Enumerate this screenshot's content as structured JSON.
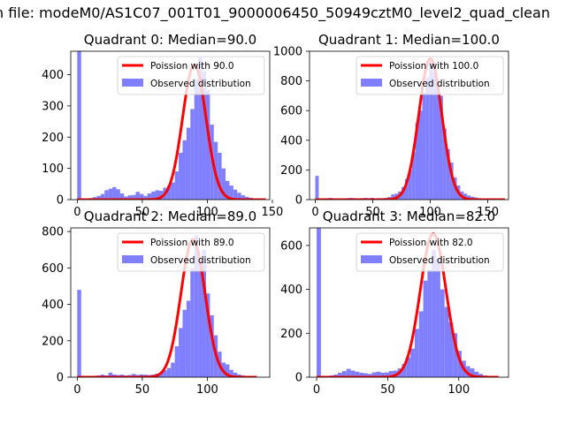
{
  "suptitle": "n file: modeM0/AS1C07_001T01_9000006450_50949cztM0_level2_quad_clean",
  "colors": {
    "hist": "#7f7fff",
    "fit": "#ff0000",
    "spine": "#000000"
  },
  "legend_labels": [
    "Poission with",
    "Observed distribution"
  ],
  "chart_data": [
    {
      "type": "bar",
      "title": "Quadrant 0: Median=90.0",
      "fit_label": "Poission with 90.0",
      "hist_label": "Observed distribution",
      "median": 90.0,
      "xlim": [
        -5,
        148
      ],
      "ylim": [
        0,
        475
      ],
      "xticks": [
        0,
        50,
        100,
        150
      ],
      "yticks": [
        0,
        100,
        200,
        300,
        400
      ],
      "bin_width": 3,
      "bins": [
        [
          0,
          475
        ],
        [
          3,
          4
        ],
        [
          6,
          4
        ],
        [
          9,
          5
        ],
        [
          12,
          8
        ],
        [
          15,
          12
        ],
        [
          18,
          18
        ],
        [
          21,
          30
        ],
        [
          24,
          35
        ],
        [
          27,
          40
        ],
        [
          30,
          33
        ],
        [
          33,
          20
        ],
        [
          36,
          10
        ],
        [
          39,
          14
        ],
        [
          42,
          15
        ],
        [
          45,
          25
        ],
        [
          48,
          18
        ],
        [
          51,
          12
        ],
        [
          54,
          20
        ],
        [
          57,
          26
        ],
        [
          60,
          30
        ],
        [
          63,
          28
        ],
        [
          66,
          38
        ],
        [
          69,
          45
        ],
        [
          72,
          55
        ],
        [
          75,
          90
        ],
        [
          78,
          150
        ],
        [
          81,
          190
        ],
        [
          84,
          230
        ],
        [
          87,
          290
        ],
        [
          90,
          385
        ],
        [
          93,
          455
        ],
        [
          96,
          410
        ],
        [
          99,
          350
        ],
        [
          102,
          240
        ],
        [
          105,
          185
        ],
        [
          108,
          150
        ],
        [
          111,
          100
        ],
        [
          114,
          60
        ],
        [
          117,
          45
        ],
        [
          120,
          32
        ],
        [
          123,
          22
        ],
        [
          126,
          14
        ],
        [
          129,
          9
        ],
        [
          132,
          6
        ],
        [
          135,
          4
        ],
        [
          138,
          3
        ]
      ],
      "fit": {
        "x0": 0,
        "x1": 145,
        "peak": 432,
        "sigma": 9.0
      }
    },
    {
      "type": "bar",
      "title": "Quadrant 1: Median=100.0",
      "fit_label": "Poission with 100.0",
      "hist_label": "Observed distribution",
      "median": 100.0,
      "xlim": [
        -5,
        168
      ],
      "ylim": [
        0,
        1000
      ],
      "xticks": [
        0,
        50,
        100,
        150
      ],
      "yticks": [
        0,
        200,
        400,
        600,
        800,
        1000
      ],
      "bin_width": 3,
      "bins": [
        [
          0,
          160
        ],
        [
          3,
          8
        ],
        [
          6,
          8
        ],
        [
          9,
          10
        ],
        [
          12,
          12
        ],
        [
          15,
          8
        ],
        [
          18,
          6
        ],
        [
          21,
          7
        ],
        [
          24,
          6
        ],
        [
          27,
          10
        ],
        [
          30,
          12
        ],
        [
          33,
          10
        ],
        [
          36,
          8
        ],
        [
          39,
          10
        ],
        [
          42,
          12
        ],
        [
          45,
          10
        ],
        [
          48,
          12
        ],
        [
          51,
          8
        ],
        [
          54,
          10
        ],
        [
          57,
          10
        ],
        [
          60,
          12
        ],
        [
          63,
          18
        ],
        [
          66,
          35
        ],
        [
          69,
          40
        ],
        [
          72,
          55
        ],
        [
          75,
          85
        ],
        [
          78,
          140
        ],
        [
          81,
          200
        ],
        [
          84,
          320
        ],
        [
          87,
          520
        ],
        [
          90,
          600
        ],
        [
          93,
          720
        ],
        [
          96,
          820
        ],
        [
          99,
          950
        ],
        [
          102,
          860
        ],
        [
          105,
          800
        ],
        [
          108,
          700
        ],
        [
          111,
          480
        ],
        [
          114,
          340
        ],
        [
          117,
          250
        ],
        [
          120,
          150
        ],
        [
          123,
          95
        ],
        [
          126,
          55
        ],
        [
          129,
          40
        ],
        [
          132,
          28
        ],
        [
          135,
          20
        ],
        [
          138,
          15
        ],
        [
          141,
          10
        ],
        [
          144,
          8
        ],
        [
          147,
          6
        ]
      ],
      "fit": {
        "x0": 0,
        "x1": 165,
        "peak": 950,
        "sigma": 10.0
      }
    },
    {
      "type": "bar",
      "title": "Quadrant 2: Median=89.0",
      "fit_label": "Poission with 89.0",
      "hist_label": "Observed distribution",
      "median": 89.0,
      "xlim": [
        -5,
        148
      ],
      "ylim": [
        0,
        820
      ],
      "xticks": [
        0,
        50,
        100
      ],
      "yticks": [
        0,
        200,
        400,
        600,
        800
      ],
      "bin_width": 3,
      "bins": [
        [
          0,
          480
        ],
        [
          3,
          6
        ],
        [
          6,
          6
        ],
        [
          9,
          7
        ],
        [
          12,
          8
        ],
        [
          15,
          10
        ],
        [
          18,
          14
        ],
        [
          21,
          10
        ],
        [
          24,
          25
        ],
        [
          27,
          15
        ],
        [
          30,
          12
        ],
        [
          33,
          14
        ],
        [
          36,
          10
        ],
        [
          39,
          12
        ],
        [
          42,
          18
        ],
        [
          45,
          12
        ],
        [
          48,
          15
        ],
        [
          51,
          14
        ],
        [
          54,
          12
        ],
        [
          57,
          15
        ],
        [
          60,
          20
        ],
        [
          63,
          25
        ],
        [
          66,
          38
        ],
        [
          69,
          50
        ],
        [
          72,
          80
        ],
        [
          75,
          170
        ],
        [
          78,
          270
        ],
        [
          81,
          370
        ],
        [
          84,
          420
        ],
        [
          87,
          600
        ],
        [
          90,
          780
        ],
        [
          93,
          640
        ],
        [
          96,
          700
        ],
        [
          99,
          460
        ],
        [
          102,
          340
        ],
        [
          105,
          230
        ],
        [
          108,
          140
        ],
        [
          111,
          80
        ],
        [
          114,
          70
        ],
        [
          117,
          40
        ],
        [
          120,
          25
        ],
        [
          123,
          15
        ],
        [
          126,
          10
        ],
        [
          129,
          6
        ]
      ],
      "fit": {
        "x0": 0,
        "x1": 138,
        "peak": 757,
        "sigma": 9.3
      }
    },
    {
      "type": "bar",
      "title": "Quadrant 3: Median=82.0",
      "fit_label": "Poission with 82.0",
      "hist_label": "Observed distribution",
      "median": 82.0,
      "xlim": [
        -5,
        135
      ],
      "ylim": [
        0,
        680
      ],
      "xticks": [
        0,
        50,
        100
      ],
      "yticks": [
        0,
        200,
        400,
        600
      ],
      "bin_width": 3,
      "bins": [
        [
          0,
          680
        ],
        [
          3,
          5
        ],
        [
          6,
          5
        ],
        [
          9,
          8
        ],
        [
          12,
          12
        ],
        [
          15,
          20
        ],
        [
          18,
          28
        ],
        [
          21,
          38
        ],
        [
          24,
          30
        ],
        [
          27,
          25
        ],
        [
          30,
          20
        ],
        [
          33,
          18
        ],
        [
          36,
          15
        ],
        [
          39,
          22
        ],
        [
          42,
          25
        ],
        [
          45,
          20
        ],
        [
          48,
          22
        ],
        [
          51,
          28
        ],
        [
          54,
          30
        ],
        [
          57,
          40
        ],
        [
          60,
          60
        ],
        [
          63,
          90
        ],
        [
          66,
          130
        ],
        [
          69,
          220
        ],
        [
          72,
          300
        ],
        [
          75,
          440
        ],
        [
          78,
          490
        ],
        [
          81,
          580
        ],
        [
          84,
          540
        ],
        [
          87,
          400
        ],
        [
          90,
          320
        ],
        [
          93,
          250
        ],
        [
          96,
          200
        ],
        [
          99,
          120
        ],
        [
          102,
          75
        ],
        [
          105,
          50
        ],
        [
          108,
          40
        ],
        [
          111,
          25
        ],
        [
          114,
          15
        ],
        [
          117,
          8
        ],
        [
          120,
          5
        ]
      ],
      "fit": {
        "x0": 0,
        "x1": 128,
        "peak": 654,
        "sigma": 9.06
      }
    }
  ]
}
